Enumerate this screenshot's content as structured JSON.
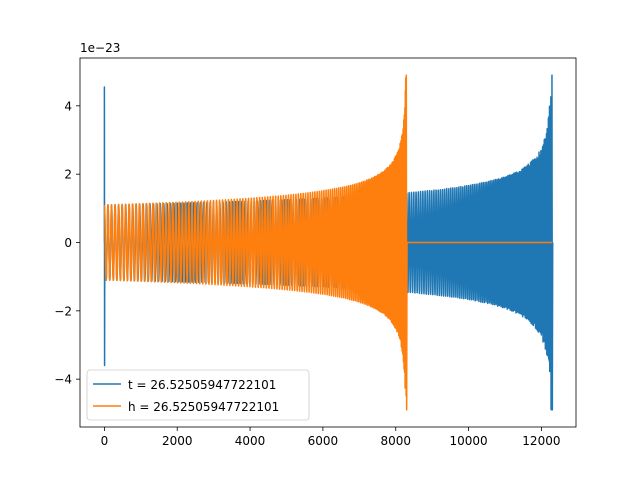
{
  "chart_data": {
    "type": "line",
    "title": "",
    "xlabel": "",
    "ylabel": "",
    "offset_text": "1e−23",
    "xlim": [
      -670,
      12950
    ],
    "ylim": [
      -5.4,
      5.4
    ],
    "x_ticks": [
      {
        "value": 0,
        "label": "0"
      },
      {
        "value": 2000,
        "label": "2000"
      },
      {
        "value": 4000,
        "label": "4000"
      },
      {
        "value": 6000,
        "label": "6000"
      },
      {
        "value": 8000,
        "label": "8000"
      },
      {
        "value": 10000,
        "label": "10000"
      },
      {
        "value": 12000,
        "label": "12000"
      }
    ],
    "y_ticks": [
      {
        "value": -4,
        "label": "−4"
      },
      {
        "value": -2,
        "label": "−2"
      },
      {
        "value": 0,
        "label": "0"
      },
      {
        "value": 2,
        "label": "2"
      },
      {
        "value": 4,
        "label": "4"
      }
    ],
    "grid": false,
    "legend_position": "lower-left",
    "series": [
      {
        "name": "t = 26.52505947722101",
        "color": "#1f77b4",
        "kind": "chirp",
        "x_start": 0,
        "x_merger": 12290,
        "initial_amplitude": 1.1,
        "peak_amplitude": 4.9,
        "initial_spike": [
          4.55,
          -3.6
        ],
        "cycles": 200,
        "ringdown_level": 0.0
      },
      {
        "name": "h = 26.52505947722101",
        "color": "#ff7f0e",
        "kind": "chirp",
        "x_start": 0,
        "x_merger": 8290,
        "initial_amplitude": 1.1,
        "peak_amplitude": 4.9,
        "cycles": 135,
        "ringdown_level": 0.0,
        "x_end": 12290
      }
    ]
  }
}
